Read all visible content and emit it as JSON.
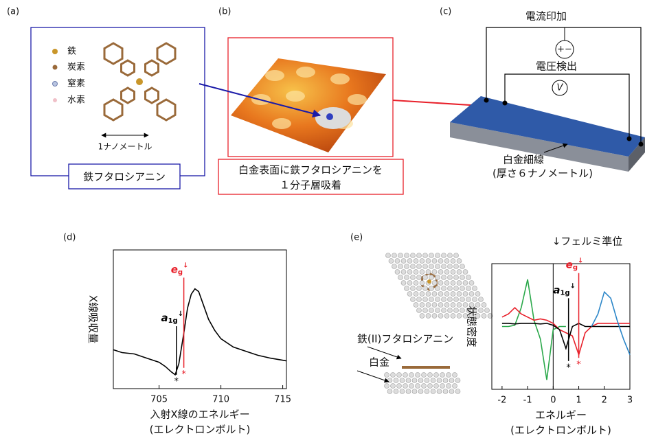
{
  "panels": {
    "a": {
      "label": "(a)",
      "legend": [
        "鉄",
        "炭素",
        "窒素",
        "水素"
      ],
      "scale": "1ナノメートル",
      "caption": "鉄フタロシアニン"
    },
    "b": {
      "label": "(b)",
      "caption": [
        "白金表面に鉄フタロシアニンを",
        "１分子層吸着"
      ]
    },
    "c": {
      "label": "(c)",
      "current": "電流印加",
      "source": "+−",
      "voltage": "電圧検出",
      "meter": "V",
      "wire": "白金細線",
      "thickness": "(厚さ６ナノメートル)"
    },
    "d": {
      "label": "(d)"
    },
    "e": {
      "label": "(e)",
      "molecule": "鉄(II)フタロシアニン",
      "substrate": "白金",
      "fermi": "↓フェルミ準位"
    }
  },
  "chart_data": [
    {
      "type": "line",
      "ylabel": "X線吸収量",
      "xlabel": [
        "入射X線のエネルギー",
        "(エレクトロンボルト)"
      ],
      "xlim": [
        701.3,
        715.3
      ],
      "xticks": [
        705,
        710,
        715
      ],
      "ylim": [
        0,
        1
      ],
      "color": "#000000",
      "x": [
        701.3,
        702,
        703,
        704,
        705,
        705.5,
        706,
        706.3,
        706.6,
        707,
        707.3,
        707.6,
        707.9,
        708.2,
        708.6,
        709,
        709.5,
        710,
        711,
        712,
        713,
        714,
        715.3
      ],
      "values": [
        0.28,
        0.26,
        0.25,
        0.22,
        0.19,
        0.16,
        0.12,
        0.1,
        0.18,
        0.4,
        0.58,
        0.68,
        0.72,
        0.7,
        0.6,
        0.5,
        0.42,
        0.36,
        0.3,
        0.27,
        0.24,
        0.22,
        0.2
      ],
      "markers": [
        {
          "x": 706.4,
          "color": "#000000",
          "text": "a",
          "sub": "1g",
          "sup": "↓",
          "star": "*"
        },
        {
          "x": 707.0,
          "color": "#e8202a",
          "text": "e",
          "sub": "g",
          "sup": "↓",
          "star": "*"
        }
      ]
    },
    {
      "type": "line",
      "ylabel": "状態密度",
      "xlabel": [
        "エネルギー",
        "(エレクトロンボルト)"
      ],
      "xlim": [
        -2.4,
        3.0
      ],
      "xticks": [
        -2,
        -1,
        0,
        1,
        2,
        3
      ],
      "ylim": [
        -1,
        1
      ],
      "fermi_x": 0,
      "x": [
        -2,
        -1.75,
        -1.5,
        -1.25,
        -1,
        -0.75,
        -0.5,
        -0.25,
        0,
        0.25,
        0.5,
        0.75,
        1,
        1.25,
        1.5,
        1.75,
        2,
        2.25,
        2.5,
        2.75,
        3
      ],
      "series": [
        {
          "name": "green",
          "color": "#2aa84a",
          "values": [
            0,
            0,
            0.02,
            0.3,
            0.75,
            0.1,
            -0.2,
            -0.85,
            -0.05,
            0,
            0,
            null,
            null,
            null,
            null,
            null,
            null,
            null,
            null,
            null,
            null
          ]
        },
        {
          "name": "red",
          "color": "#e8202a",
          "values": [
            0.15,
            0.2,
            0.3,
            0.2,
            0.15,
            0.1,
            0.12,
            0.1,
            0.05,
            -0.05,
            -0.1,
            -0.15,
            -0.45,
            -0.1,
            0,
            0.05,
            0.05,
            0.05,
            0.05,
            0.05,
            0.05
          ]
        },
        {
          "name": "black",
          "color": "#000000",
          "values": [
            0.05,
            0.05,
            0.04,
            0.05,
            0.05,
            0.05,
            0.04,
            0.05,
            0.02,
            -0.05,
            -0.35,
            0,
            0.05,
            0,
            0,
            0,
            0,
            0,
            0,
            0,
            0
          ]
        },
        {
          "name": "blue",
          "color": "#2b86c8",
          "values": [
            null,
            null,
            null,
            null,
            null,
            null,
            null,
            null,
            null,
            null,
            null,
            null,
            null,
            null,
            0,
            0.2,
            0.55,
            0.45,
            0.1,
            -0.2,
            -0.45
          ]
        }
      ],
      "markers": [
        {
          "x": 0.6,
          "color": "#000000",
          "text": "a",
          "sub": "1g",
          "sup": "↓",
          "star": "*"
        },
        {
          "x": 1.0,
          "color": "#e8202a",
          "text": "e",
          "sub": "g",
          "sup": "↓",
          "star": "*"
        }
      ]
    }
  ]
}
